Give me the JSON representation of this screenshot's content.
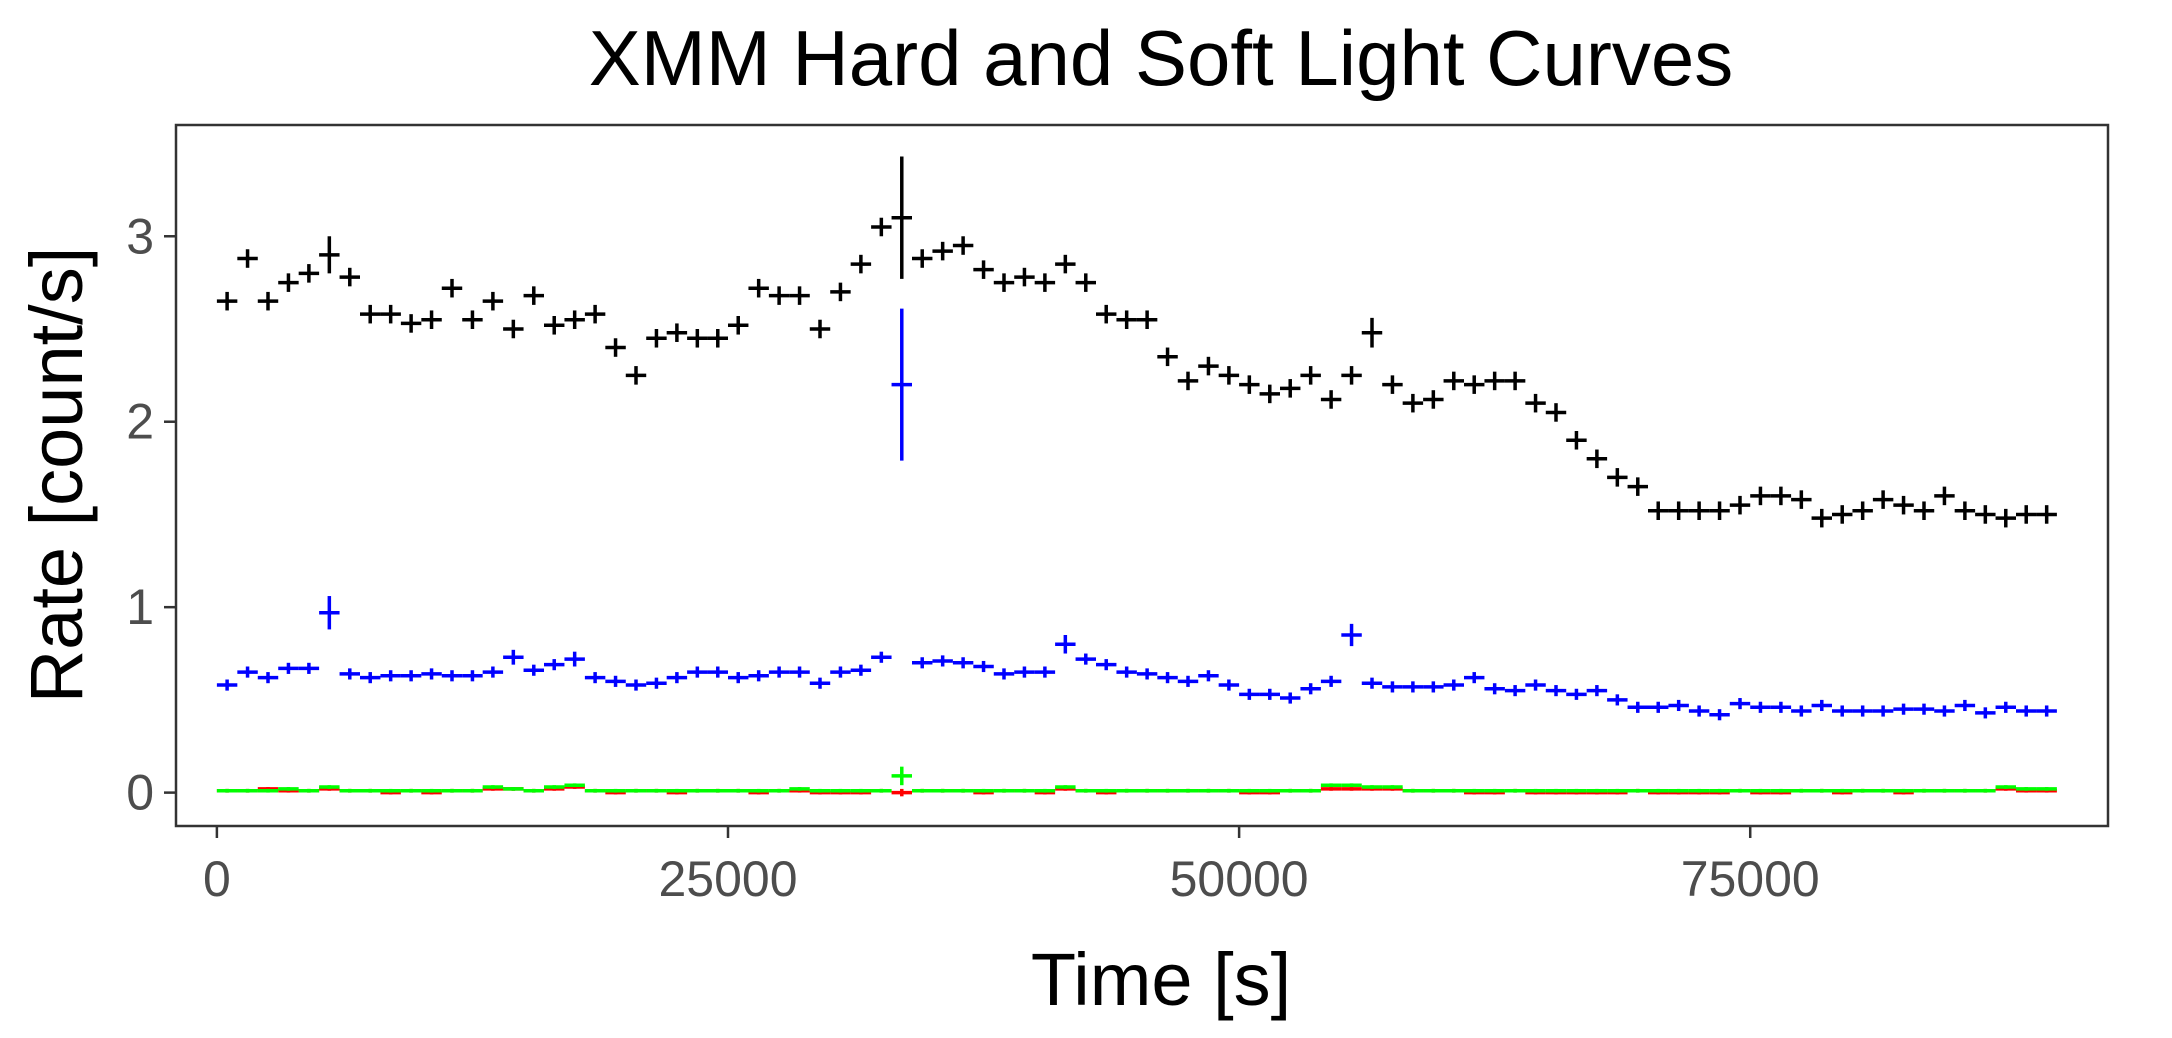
{
  "chart_data": {
    "type": "scatter",
    "title": "XMM Hard and Soft Light Curves",
    "xlabel": "Time [s]",
    "ylabel": "Rate [count/s]",
    "xlim": [
      -2000,
      92500
    ],
    "ylim": [
      -0.18,
      3.6
    ],
    "x_ticks": [
      0,
      25000,
      50000,
      75000
    ],
    "y_ticks": [
      0,
      1,
      2,
      3
    ],
    "x_tick_labels": [
      "0",
      "25000",
      "50000",
      "75000"
    ],
    "y_tick_labels": [
      "0",
      "1",
      "2",
      "3"
    ],
    "grid": false,
    "legend": "none",
    "bin_width": 1000,
    "x": [
      500,
      1500,
      2500,
      3500,
      4500,
      5500,
      6500,
      7500,
      8500,
      9500,
      10500,
      11500,
      12500,
      13500,
      14500,
      15500,
      16500,
      17500,
      18500,
      19500,
      20500,
      21500,
      22500,
      23500,
      24500,
      25500,
      26500,
      27500,
      28500,
      29500,
      30500,
      31500,
      32500,
      33500,
      34500,
      35500,
      36500,
      37500,
      38500,
      39500,
      40500,
      41500,
      42500,
      43500,
      44500,
      45500,
      46500,
      47500,
      48500,
      49500,
      50500,
      51500,
      52500,
      53500,
      54500,
      55500,
      56500,
      57500,
      58500,
      59500,
      60500,
      61500,
      62500,
      63500,
      64500,
      65500,
      66500,
      67500,
      68500,
      69500,
      70500,
      71500,
      72500,
      73500,
      74500,
      75500,
      76500,
      77500,
      78500,
      79500,
      80500,
      81500,
      82500,
      83500,
      84500,
      85500,
      86500,
      87500,
      88500,
      89500
    ],
    "series": [
      {
        "color": "#000000",
        "values": [
          2.65,
          2.88,
          2.65,
          2.75,
          2.8,
          2.9,
          2.78,
          2.58,
          2.58,
          2.53,
          2.55,
          2.72,
          2.55,
          2.65,
          2.5,
          2.68,
          2.52,
          2.55,
          2.58,
          2.4,
          2.25,
          2.45,
          2.48,
          2.45,
          2.45,
          2.52,
          2.72,
          2.68,
          2.68,
          2.5,
          2.7,
          2.85,
          3.05,
          3.1,
          2.88,
          2.92,
          2.95,
          2.82,
          2.75,
          2.78,
          2.75,
          2.85,
          2.75,
          2.58,
          2.55,
          2.55,
          2.35,
          2.22,
          2.3,
          2.25,
          2.2,
          2.15,
          2.18,
          2.25,
          2.12,
          2.25,
          2.48,
          2.2,
          2.1,
          2.12,
          2.22,
          2.2,
          2.22,
          2.22,
          2.1,
          2.05,
          1.9,
          1.8,
          1.7,
          1.65,
          1.52,
          1.52,
          1.52,
          1.52,
          1.55,
          1.6,
          1.6,
          1.58,
          1.48,
          1.5,
          1.52,
          1.58,
          1.55,
          1.52,
          1.6,
          1.52,
          1.5,
          1.48,
          1.5,
          1.5
        ],
        "errors": [
          0.05,
          0.05,
          0.05,
          0.05,
          0.05,
          0.1,
          0.05,
          0.05,
          0.05,
          0.05,
          0.05,
          0.05,
          0.05,
          0.05,
          0.05,
          0.05,
          0.05,
          0.05,
          0.05,
          0.05,
          0.05,
          0.05,
          0.05,
          0.05,
          0.05,
          0.05,
          0.05,
          0.05,
          0.05,
          0.05,
          0.05,
          0.05,
          0.05,
          0.33,
          0.05,
          0.05,
          0.05,
          0.05,
          0.05,
          0.05,
          0.05,
          0.05,
          0.05,
          0.05,
          0.05,
          0.05,
          0.05,
          0.05,
          0.05,
          0.05,
          0.05,
          0.05,
          0.05,
          0.05,
          0.05,
          0.05,
          0.08,
          0.05,
          0.05,
          0.05,
          0.05,
          0.05,
          0.05,
          0.05,
          0.05,
          0.05,
          0.05,
          0.05,
          0.05,
          0.05,
          0.05,
          0.05,
          0.05,
          0.05,
          0.05,
          0.05,
          0.05,
          0.05,
          0.05,
          0.05,
          0.05,
          0.05,
          0.05,
          0.05,
          0.05,
          0.05,
          0.05,
          0.05,
          0.05,
          0.05
        ]
      },
      {
        "color": "#0000ff",
        "values": [
          0.58,
          0.65,
          0.62,
          0.67,
          0.67,
          0.97,
          0.64,
          0.62,
          0.63,
          0.63,
          0.64,
          0.63,
          0.63,
          0.65,
          0.73,
          0.66,
          0.69,
          0.72,
          0.62,
          0.6,
          0.58,
          0.59,
          0.62,
          0.65,
          0.65,
          0.62,
          0.63,
          0.65,
          0.65,
          0.59,
          0.65,
          0.66,
          0.73,
          2.2,
          0.7,
          0.71,
          0.7,
          0.68,
          0.64,
          0.65,
          0.65,
          0.8,
          0.72,
          0.69,
          0.65,
          0.64,
          0.62,
          0.6,
          0.63,
          0.58,
          0.53,
          0.53,
          0.51,
          0.56,
          0.6,
          0.85,
          0.59,
          0.57,
          0.57,
          0.57,
          0.58,
          0.62,
          0.56,
          0.55,
          0.58,
          0.55,
          0.53,
          0.55,
          0.5,
          0.46,
          0.46,
          0.47,
          0.44,
          0.42,
          0.48,
          0.46,
          0.46,
          0.44,
          0.47,
          0.44,
          0.44,
          0.44,
          0.45,
          0.45,
          0.44,
          0.47,
          0.43,
          0.46,
          0.44,
          0.44
        ],
        "errors": [
          0.03,
          0.03,
          0.03,
          0.03,
          0.03,
          0.09,
          0.03,
          0.03,
          0.03,
          0.03,
          0.03,
          0.03,
          0.03,
          0.03,
          0.04,
          0.03,
          0.03,
          0.04,
          0.03,
          0.03,
          0.03,
          0.03,
          0.03,
          0.03,
          0.03,
          0.03,
          0.03,
          0.03,
          0.03,
          0.03,
          0.03,
          0.03,
          0.03,
          0.41,
          0.03,
          0.03,
          0.03,
          0.03,
          0.03,
          0.03,
          0.03,
          0.05,
          0.03,
          0.03,
          0.03,
          0.03,
          0.03,
          0.03,
          0.03,
          0.03,
          0.03,
          0.03,
          0.03,
          0.03,
          0.03,
          0.06,
          0.03,
          0.03,
          0.03,
          0.03,
          0.03,
          0.03,
          0.03,
          0.03,
          0.03,
          0.03,
          0.03,
          0.03,
          0.03,
          0.03,
          0.03,
          0.03,
          0.03,
          0.03,
          0.03,
          0.03,
          0.03,
          0.03,
          0.03,
          0.03,
          0.03,
          0.03,
          0.03,
          0.03,
          0.03,
          0.03,
          0.03,
          0.03,
          0.03,
          0.03
        ]
      },
      {
        "color": "#ff0000",
        "values": [
          0.01,
          0.01,
          0.02,
          0.01,
          0.01,
          0.02,
          0.01,
          0.01,
          0.0,
          0.01,
          0.0,
          0.01,
          0.01,
          0.02,
          0.02,
          0.01,
          0.02,
          0.03,
          0.01,
          0.0,
          0.01,
          0.01,
          0.0,
          0.01,
          0.01,
          0.01,
          0.0,
          0.01,
          0.01,
          0.0,
          0.0,
          0.0,
          0.01,
          0.0,
          0.01,
          0.01,
          0.01,
          0.0,
          0.01,
          0.01,
          0.0,
          0.02,
          0.01,
          0.0,
          0.01,
          0.01,
          0.01,
          0.01,
          0.01,
          0.01,
          0.0,
          0.0,
          0.01,
          0.01,
          0.02,
          0.02,
          0.02,
          0.02,
          0.01,
          0.01,
          0.01,
          0.0,
          0.0,
          0.01,
          0.0,
          0.0,
          0.0,
          0.0,
          0.0,
          0.01,
          0.0,
          0.0,
          0.0,
          0.0,
          0.01,
          0.0,
          0.0,
          0.01,
          0.01,
          0.0,
          0.01,
          0.01,
          0.0,
          0.01,
          0.01,
          0.01,
          0.01,
          0.02,
          0.01,
          0.01
        ],
        "errors": [
          0.01,
          0.01,
          0.01,
          0.01,
          0.01,
          0.01,
          0.01,
          0.01,
          0.01,
          0.01,
          0.01,
          0.01,
          0.01,
          0.01,
          0.01,
          0.01,
          0.01,
          0.01,
          0.01,
          0.01,
          0.01,
          0.01,
          0.01,
          0.01,
          0.01,
          0.01,
          0.01,
          0.01,
          0.01,
          0.01,
          0.01,
          0.01,
          0.01,
          0.02,
          0.01,
          0.01,
          0.01,
          0.01,
          0.01,
          0.01,
          0.01,
          0.01,
          0.01,
          0.01,
          0.01,
          0.01,
          0.01,
          0.01,
          0.01,
          0.01,
          0.01,
          0.01,
          0.01,
          0.01,
          0.01,
          0.01,
          0.01,
          0.01,
          0.01,
          0.01,
          0.01,
          0.01,
          0.01,
          0.01,
          0.01,
          0.01,
          0.01,
          0.01,
          0.01,
          0.01,
          0.01,
          0.01,
          0.01,
          0.01,
          0.01,
          0.01,
          0.01,
          0.01,
          0.01,
          0.01,
          0.01,
          0.01,
          0.01,
          0.01,
          0.01,
          0.01,
          0.01,
          0.01,
          0.01,
          0.01
        ]
      },
      {
        "color": "#00ff00",
        "values": [
          0.01,
          0.01,
          0.01,
          0.02,
          0.01,
          0.03,
          0.01,
          0.01,
          0.01,
          0.01,
          0.01,
          0.01,
          0.01,
          0.03,
          0.02,
          0.01,
          0.03,
          0.04,
          0.01,
          0.01,
          0.01,
          0.01,
          0.01,
          0.01,
          0.01,
          0.01,
          0.01,
          0.01,
          0.02,
          0.01,
          0.01,
          0.01,
          0.01,
          0.09,
          0.01,
          0.01,
          0.01,
          0.01,
          0.01,
          0.01,
          0.01,
          0.03,
          0.01,
          0.01,
          0.01,
          0.01,
          0.01,
          0.01,
          0.01,
          0.01,
          0.01,
          0.01,
          0.01,
          0.01,
          0.04,
          0.04,
          0.03,
          0.03,
          0.01,
          0.01,
          0.01,
          0.01,
          0.01,
          0.01,
          0.01,
          0.01,
          0.01,
          0.01,
          0.01,
          0.01,
          0.01,
          0.01,
          0.01,
          0.01,
          0.01,
          0.01,
          0.01,
          0.01,
          0.01,
          0.01,
          0.01,
          0.01,
          0.01,
          0.01,
          0.01,
          0.01,
          0.01,
          0.03,
          0.02,
          0.02
        ],
        "errors": [
          0.01,
          0.01,
          0.01,
          0.01,
          0.01,
          0.01,
          0.01,
          0.01,
          0.01,
          0.01,
          0.01,
          0.01,
          0.01,
          0.01,
          0.01,
          0.01,
          0.01,
          0.01,
          0.01,
          0.01,
          0.01,
          0.01,
          0.01,
          0.01,
          0.01,
          0.01,
          0.01,
          0.01,
          0.01,
          0.01,
          0.01,
          0.01,
          0.01,
          0.05,
          0.01,
          0.01,
          0.01,
          0.01,
          0.01,
          0.01,
          0.01,
          0.01,
          0.01,
          0.01,
          0.01,
          0.01,
          0.01,
          0.01,
          0.01,
          0.01,
          0.01,
          0.01,
          0.01,
          0.01,
          0.01,
          0.01,
          0.01,
          0.01,
          0.01,
          0.01,
          0.01,
          0.01,
          0.01,
          0.01,
          0.01,
          0.01,
          0.01,
          0.01,
          0.01,
          0.01,
          0.01,
          0.01,
          0.01,
          0.01,
          0.01,
          0.01,
          0.01,
          0.01,
          0.01,
          0.01,
          0.01,
          0.01,
          0.01,
          0.01,
          0.01,
          0.01,
          0.01,
          0.01,
          0.01,
          0.01
        ]
      }
    ]
  }
}
